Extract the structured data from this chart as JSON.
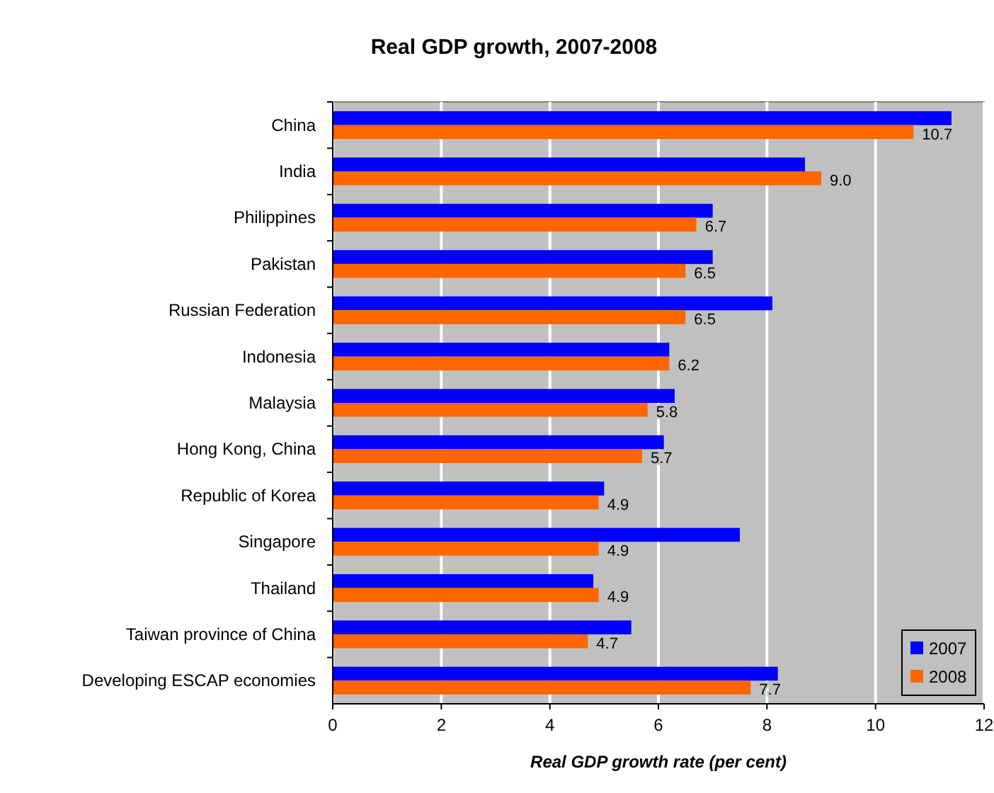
{
  "chart_data": {
    "type": "bar",
    "orientation": "horizontal",
    "title": "Real GDP growth, 2007-2008",
    "xlabel": "Real GDP growth rate (per cent)",
    "categories": [
      "China",
      "India",
      "Philippines",
      "Pakistan",
      "Russian Federation",
      "Indonesia",
      "Malaysia",
      "Hong Kong, China",
      "Republic of Korea",
      "Singapore",
      "Thailand",
      "Taiwan province of China",
      "Developing ESCAP economies"
    ],
    "series": [
      {
        "name": "2007",
        "color": "#0000ff",
        "values": [
          11.4,
          8.7,
          7.0,
          7.0,
          8.1,
          6.2,
          6.3,
          6.1,
          5.0,
          7.5,
          4.8,
          5.5,
          8.2
        ]
      },
      {
        "name": "2008",
        "color": "#ff6600",
        "values": [
          10.7,
          9.0,
          6.7,
          6.5,
          6.5,
          6.2,
          5.8,
          5.7,
          4.9,
          4.9,
          4.9,
          4.7,
          7.7
        ],
        "value_labels": [
          "10.7",
          "9.0",
          "6.7",
          "6.5",
          "6.5",
          "6.2",
          "5.8",
          "5.7",
          "4.9",
          "4.9",
          "4.9",
          "4.7",
          "7.7"
        ]
      }
    ],
    "xlim": [
      0,
      12
    ],
    "xticks": [
      0,
      2,
      4,
      6,
      8,
      10,
      12
    ],
    "grid": "x",
    "legend": "bottom right"
  }
}
